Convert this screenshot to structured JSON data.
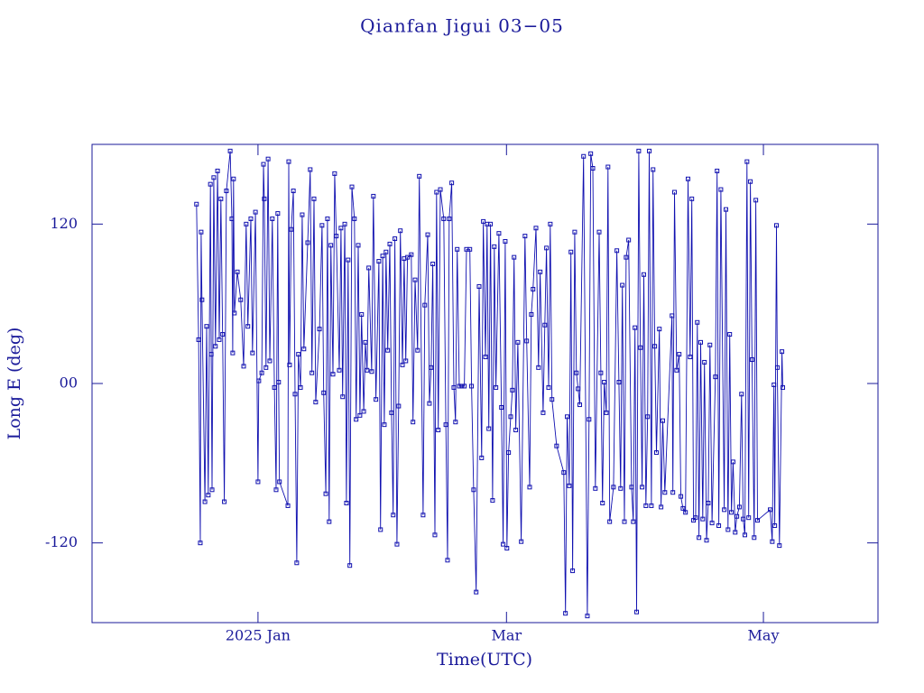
{
  "chart_data": {
    "type": "line",
    "title": "Qianfan Jigui 03−05",
    "xlabel": "Time(UTC)",
    "ylabel": "Long E (deg)",
    "color": "#1010b0",
    "xlim": [
      -39.4,
      147.2
    ],
    "ylim": [
      -180,
      180
    ],
    "xticks": [
      {
        "value": 0,
        "label": "2025 Jan"
      },
      {
        "value": 59,
        "label": "Mar"
      },
      {
        "value": 120,
        "label": "May"
      }
    ],
    "yticks": [
      -120,
      {
        "value": 0,
        "label": "00"
      },
      120
    ],
    "x": [
      -14.6,
      -14.1,
      -13.7,
      -13.5,
      -13.3,
      -12.6,
      -12.2,
      -11.8,
      -11.3,
      -11.1,
      -10.9,
      -10.5,
      -10.1,
      -9.6,
      -9.2,
      -8.8,
      -8.4,
      -8.0,
      -7.5,
      -6.6,
      -6.2,
      -6.0,
      -5.8,
      -5.6,
      -4.9,
      -4.1,
      -3.4,
      -2.8,
      -2.4,
      -1.7,
      -1.3,
      -0.6,
      0.0,
      0.2,
      0.9,
      1.3,
      1.5,
      1.9,
      2.4,
      2.8,
      3.4,
      3.9,
      4.3,
      4.7,
      4.9,
      5.1,
      7.1,
      7.3,
      7.5,
      7.9,
      8.4,
      8.8,
      9.2,
      9.6,
      10.1,
      10.5,
      10.9,
      11.8,
      12.4,
      12.8,
      13.3,
      13.7,
      14.6,
      15.2,
      15.6,
      16.1,
      16.5,
      16.9,
      17.3,
      17.8,
      18.2,
      18.6,
      19.3,
      19.7,
      20.1,
      20.6,
      21.0,
      21.4,
      21.8,
      22.3,
      22.9,
      23.3,
      23.8,
      24.2,
      24.6,
      25.1,
      25.5,
      25.9,
      26.3,
      27.0,
      27.4,
      28.0,
      28.7,
      29.1,
      29.6,
      30.0,
      30.4,
      30.8,
      31.3,
      31.7,
      32.1,
      32.5,
      33.0,
      33.4,
      33.8,
      34.3,
      34.7,
      35.1,
      35.5,
      36.4,
      36.8,
      37.3,
      37.9,
      38.3,
      39.2,
      39.6,
      40.3,
      40.7,
      41.1,
      41.5,
      42.0,
      42.4,
      42.8,
      43.3,
      44.1,
      44.6,
      45.0,
      45.4,
      46.0,
      46.5,
      46.9,
      47.3,
      47.8,
      48.4,
      49.0,
      49.5,
      50.3,
      50.7,
      51.2,
      51.8,
      52.5,
      53.1,
      53.5,
      54.0,
      54.4,
      54.8,
      55.2,
      55.7,
      56.1,
      56.5,
      57.2,
      57.8,
      58.2,
      58.7,
      59.1,
      59.5,
      60.0,
      60.4,
      60.8,
      61.2,
      61.7,
      62.5,
      63.4,
      63.8,
      64.5,
      64.9,
      65.3,
      66.0,
      66.6,
      67.0,
      67.7,
      68.1,
      68.5,
      69.0,
      69.4,
      69.8,
      70.9,
      72.6,
      73.0,
      73.4,
      73.9,
      74.3,
      74.7,
      75.2,
      75.6,
      76.0,
      76.4,
      77.3,
      78.2,
      78.6,
      79.0,
      79.5,
      80.1,
      81.0,
      81.4,
      81.8,
      82.2,
      82.7,
      83.1,
      83.5,
      84.4,
      85.2,
      85.7,
      86.1,
      86.5,
      87.0,
      87.4,
      88.0,
      88.7,
      89.1,
      89.5,
      89.9,
      90.4,
      90.8,
      91.2,
      91.6,
      92.1,
      92.5,
      92.9,
      93.4,
      93.8,
      94.2,
      94.6,
      95.3,
      95.7,
      96.1,
      96.6,
      98.3,
      98.5,
      98.9,
      99.4,
      100.0,
      100.4,
      100.9,
      101.5,
      102.1,
      102.6,
      103.0,
      103.4,
      103.9,
      104.3,
      104.7,
      105.1,
      105.6,
      106.0,
      106.5,
      106.9,
      107.3,
      107.8,
      108.6,
      109.0,
      109.4,
      109.9,
      110.7,
      111.1,
      111.6,
      112.0,
      112.4,
      112.8,
      113.3,
      113.7,
      114.3,
      114.8,
      115.2,
      115.6,
      116.1,
      116.5,
      116.9,
      117.3,
      117.8,
      118.2,
      118.6,
      121.6,
      122.1,
      122.5,
      122.7,
      123.1,
      123.3,
      123.8,
      124.4,
      124.6
    ],
    "values": [
      135,
      33,
      -120,
      114,
      63,
      -89,
      43,
      -84,
      150,
      22,
      -80,
      155,
      28,
      160,
      33,
      139,
      37,
      -89,
      145,
      175,
      124,
      23,
      154,
      53,
      84,
      63,
      13,
      120,
      43,
      124,
      23,
      129,
      -74,
      2,
      8,
      165,
      139,
      12,
      169,
      17,
      124,
      -3,
      -80,
      128,
      1,
      -74,
      -92,
      167,
      14,
      116,
      145,
      -8,
      -135,
      22,
      -3,
      127,
      26,
      106,
      161,
      8,
      139,
      -14,
      41,
      119,
      -7,
      -83,
      124,
      -104,
      104,
      7,
      158,
      111,
      10,
      117,
      -10,
      120,
      -90,
      93,
      -137,
      148,
      124,
      -27,
      104,
      -24,
      52,
      -21,
      31,
      10,
      87,
      9,
      141,
      -12,
      92,
      -110,
      96,
      -31,
      99,
      25,
      105,
      -22,
      -99,
      109,
      -121,
      -17,
      115,
      14,
      94,
      17,
      95,
      97,
      -29,
      78,
      25,
      156,
      -99,
      59,
      112,
      -15,
      12,
      90,
      -114,
      144,
      -35,
      146,
      124,
      -31,
      -133,
      124,
      151,
      -3,
      -29,
      101,
      -2,
      -2,
      -2,
      101,
      101,
      -2,
      -80,
      -157,
      73,
      -56,
      122,
      20,
      120,
      -34,
      120,
      -88,
      103,
      -3,
      113,
      -18,
      -121,
      107,
      -124,
      -52,
      -25,
      -5,
      95,
      -35,
      31,
      -119,
      111,
      32,
      -78,
      52,
      71,
      117,
      12,
      84,
      -22,
      44,
      102,
      -3,
      120,
      -12,
      -47,
      -67,
      -173,
      -25,
      -77,
      99,
      -141,
      114,
      8,
      -4,
      -16,
      171,
      -175,
      -27,
      173,
      162,
      -79,
      114,
      8,
      -90,
      1,
      -22,
      163,
      -104,
      -78,
      100,
      1,
      -79,
      74,
      -104,
      95,
      108,
      -78,
      -104,
      42,
      -172,
      175,
      27,
      -78,
      82,
      -92,
      -25,
      175,
      -92,
      161,
      28,
      -52,
      41,
      -93,
      -28,
      -82,
      51,
      -82,
      144,
      10,
      22,
      -85,
      -94,
      -97,
      154,
      20,
      139,
      -103,
      -101,
      46,
      -116,
      31,
      -102,
      16,
      -118,
      -90,
      29,
      -105,
      5,
      160,
      -107,
      146,
      -95,
      131,
      -110,
      37,
      -97,
      -59,
      -112,
      -100,
      -93,
      -8,
      -102,
      -114,
      167,
      -101,
      152,
      18,
      -116,
      138,
      -103,
      -95,
      -119,
      -1,
      -107,
      119,
      12,
      -122,
      24,
      -3
    ]
  }
}
